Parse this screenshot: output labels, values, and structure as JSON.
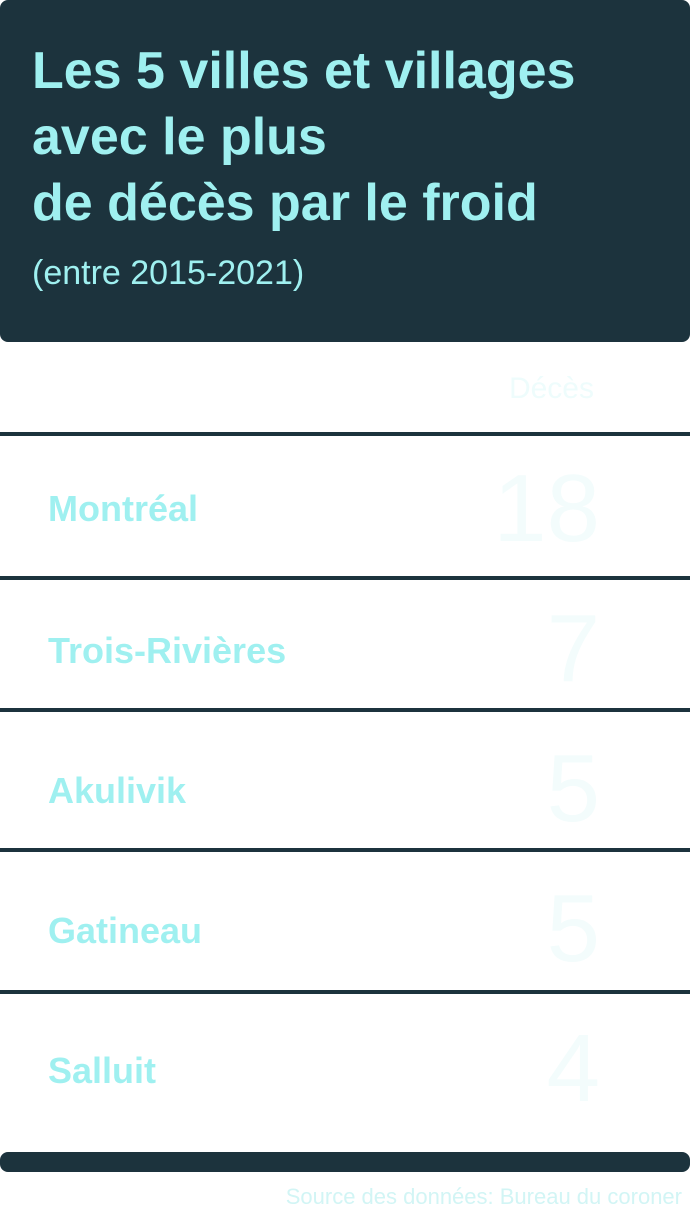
{
  "header": {
    "title_lines": [
      "Les 5 villes et villages",
      "avec le plus",
      "de décès par le froid"
    ],
    "subtitle": "(entre 2015-2021)"
  },
  "table": {
    "column_header": "Décès",
    "rows": [
      {
        "city": "Montréal",
        "deaths": "18"
      },
      {
        "city": "Trois-Rivières",
        "deaths": "7"
      },
      {
        "city": "Akulivik",
        "deaths": "5"
      },
      {
        "city": "Gatineau",
        "deaths": "5"
      },
      {
        "city": "Salluit",
        "deaths": "4"
      }
    ]
  },
  "footer": {
    "source": "Source des données: Bureau du coroner"
  },
  "colors": {
    "dark": "#1c333d",
    "accent": "#9ff0f0"
  }
}
